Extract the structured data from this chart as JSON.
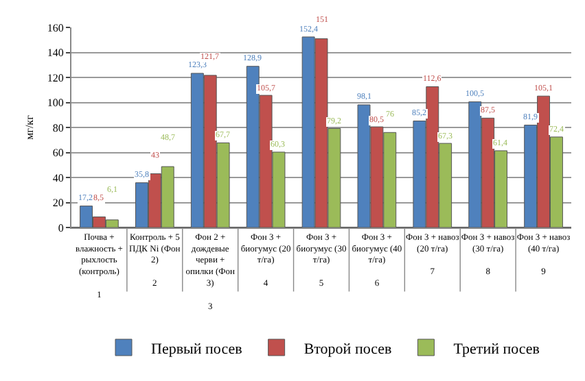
{
  "chart_data": {
    "type": "bar",
    "ylabel": "мг/кг",
    "categories": [
      "Почва + влажность + рыхлость (контроль)\n\n1",
      "Контроль + 5 ПДК Ni (Фон 2)\n\n2",
      "Фон 2 + дождевые черви + опилки (Фон 3)\n\n3",
      "Фон 3 + биогумус (20 т/га)\n\n4",
      "Фон 3 + биогумус (30 т/га)\n\n5",
      "Фон 3 + биогумус (40 т/га)\n\n6",
      "Фон 3 + навоз (20 т/га)\n\n7",
      "Фон 3 + навоз (30 т/га)\n\n8",
      "Фон 3 + навоз (40 т/га)\n\n9"
    ],
    "series": [
      {
        "name": "Первый посев",
        "color": "#4f81bd",
        "values": [
          17.2,
          35.8,
          123.3,
          128.9,
          152.4,
          98.1,
          85.2,
          100.5,
          81.9
        ],
        "value_labels": [
          "17,2",
          "35,8",
          "123,3",
          "128,9",
          "152,4",
          "98,1",
          "85,2",
          "100,5",
          "81,9"
        ]
      },
      {
        "name": "Второй посев",
        "color": "#c0504d",
        "values": [
          8.5,
          43,
          121.7,
          105.7,
          151,
          80.5,
          112.6,
          87.5,
          105.1
        ],
        "value_labels": [
          "8,5",
          "43",
          "121,7",
          "105,7",
          "151",
          "80,5",
          "112,6",
          "87,5",
          "105,1"
        ]
      },
      {
        "name": "Третий посев",
        "color": "#9bbb59",
        "values": [
          6.1,
          48.7,
          67.7,
          60.3,
          79.2,
          76,
          67.3,
          61.4,
          72.4
        ],
        "value_labels": [
          "6,1",
          "48,7",
          "67,7",
          "60,3",
          "79,2",
          "76",
          "67,3",
          "61,4",
          "72,4"
        ]
      }
    ],
    "ylim": [
      0,
      160
    ],
    "yticks": [
      0,
      20,
      40,
      60,
      80,
      100,
      120,
      140,
      160
    ],
    "grid": "y",
    "legend": "bottom"
  }
}
